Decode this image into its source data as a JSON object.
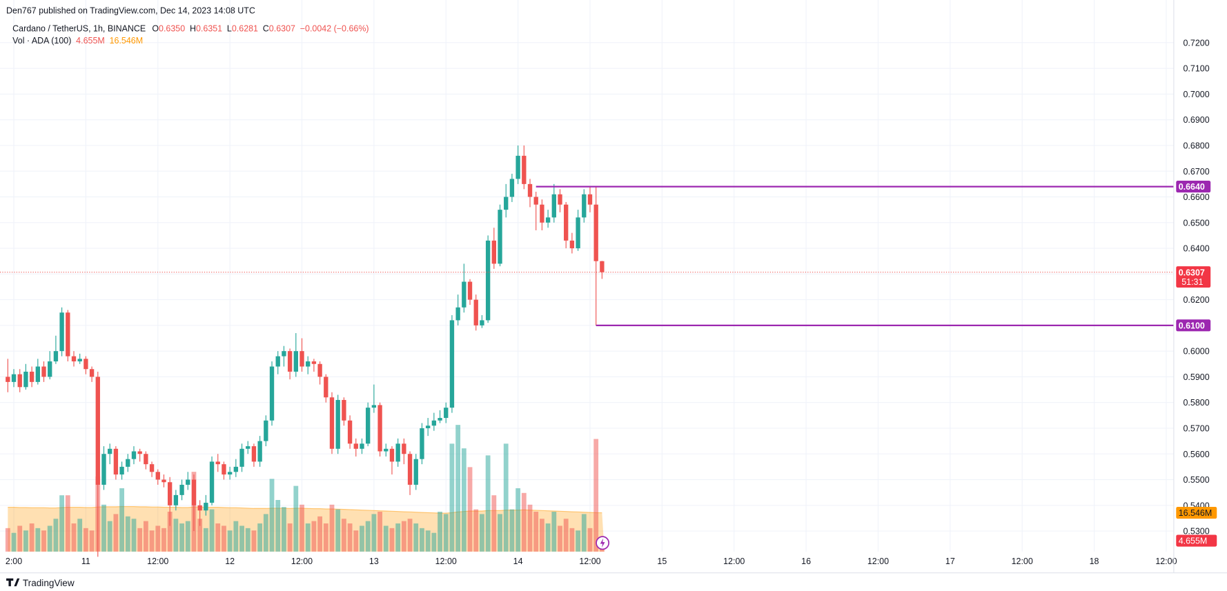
{
  "chart_data": {
    "type": "candlestick",
    "title": "Den767 published on TradingView.com, Dec 14, 2023 14:08 UTC",
    "symbol": "Cardano / TetherUS, 1h, BINANCE",
    "ohlc_legend": [
      {
        "key": "O",
        "value": "0.6350"
      },
      {
        "key": "H",
        "value": "0.6351"
      },
      {
        "key": "L",
        "value": "0.6281"
      },
      {
        "key": "C",
        "value": "0.6307"
      }
    ],
    "change": "−0.0042 (−0.66%)",
    "volume_legend": "Vol · ADA (100)",
    "up_color": "#26a69a",
    "down_color": "#ef5350",
    "ma_color": "#ff9800",
    "level_color": "#9c27b0",
    "grid": true,
    "x": [
      0,
      1,
      2,
      3,
      4,
      5,
      6,
      7,
      8,
      9,
      10,
      11,
      12,
      13,
      14,
      15,
      16,
      17,
      18,
      19,
      20,
      21,
      22,
      23,
      24,
      25,
      26,
      27,
      28,
      29,
      30,
      31,
      32,
      33,
      34,
      35,
      36,
      37,
      38,
      39,
      40,
      41,
      42,
      43,
      44,
      45,
      46,
      47,
      48,
      49,
      50,
      51,
      52,
      53,
      54,
      55,
      56,
      57,
      58,
      59,
      60,
      61,
      62,
      63,
      64,
      65,
      66,
      67,
      68,
      69,
      70,
      71,
      72,
      73,
      74,
      75,
      76,
      77,
      78,
      79,
      80,
      81,
      82,
      83,
      84,
      85,
      86,
      87,
      88,
      89,
      90,
      91,
      92,
      93,
      94,
      95,
      96,
      97,
      98,
      99
    ],
    "open": [
      0.59,
      0.588,
      0.591,
      0.586,
      0.592,
      0.588,
      0.594,
      0.59,
      0.596,
      0.6,
      0.615,
      0.598,
      0.596,
      0.597,
      0.593,
      0.59,
      0.548,
      0.56,
      0.562,
      0.552,
      0.555,
      0.558,
      0.561,
      0.56,
      0.556,
      0.553,
      0.55,
      0.549,
      0.54,
      0.544,
      0.548,
      0.55,
      0.54,
      0.538,
      0.541,
      0.557,
      0.556,
      0.552,
      0.553,
      0.555,
      0.562,
      0.563,
      0.557,
      0.565,
      0.573,
      0.594,
      0.598,
      0.6,
      0.592,
      0.6,
      0.594,
      0.596,
      0.595,
      0.59,
      0.582,
      0.562,
      0.581,
      0.573,
      0.564,
      0.562,
      0.564,
      0.578,
      0.579,
      0.561,
      0.562,
      0.557,
      0.564,
      0.56,
      0.548,
      0.558,
      0.57,
      0.571,
      0.573,
      0.574,
      0.578,
      0.612,
      0.617,
      0.627,
      0.62,
      0.61,
      0.612,
      0.643,
      0.634,
      0.655,
      0.66,
      0.667,
      0.676,
      0.665,
      0.66,
      0.657,
      0.65,
      0.652,
      0.661,
      0.657,
      0.643,
      0.64,
      0.652,
      0.661,
      0.657,
      0.635
    ],
    "high": [
      0.597,
      0.593,
      0.593,
      0.595,
      0.594,
      0.597,
      0.596,
      0.6,
      0.606,
      0.617,
      0.616,
      0.6,
      0.599,
      0.598,
      0.594,
      0.592,
      0.563,
      0.564,
      0.563,
      0.557,
      0.56,
      0.563,
      0.562,
      0.561,
      0.557,
      0.554,
      0.552,
      0.551,
      0.546,
      0.55,
      0.553,
      0.552,
      0.542,
      0.544,
      0.559,
      0.56,
      0.557,
      0.555,
      0.558,
      0.564,
      0.565,
      0.564,
      0.567,
      0.575,
      0.596,
      0.6,
      0.602,
      0.601,
      0.607,
      0.605,
      0.598,
      0.597,
      0.596,
      0.591,
      0.584,
      0.583,
      0.582,
      0.575,
      0.566,
      0.566,
      0.58,
      0.587,
      0.58,
      0.564,
      0.563,
      0.566,
      0.566,
      0.561,
      0.56,
      0.572,
      0.574,
      0.576,
      0.577,
      0.58,
      0.614,
      0.622,
      0.634,
      0.628,
      0.622,
      0.614,
      0.645,
      0.648,
      0.657,
      0.665,
      0.669,
      0.68,
      0.68,
      0.667,
      0.662,
      0.659,
      0.655,
      0.665,
      0.663,
      0.658,
      0.646,
      0.655,
      0.663,
      0.664,
      0.664,
      0.6351
    ],
    "low": [
      0.584,
      0.586,
      0.584,
      0.585,
      0.586,
      0.587,
      0.588,
      0.589,
      0.595,
      0.598,
      0.596,
      0.594,
      0.595,
      0.591,
      0.588,
      0.52,
      0.546,
      0.556,
      0.55,
      0.55,
      0.553,
      0.556,
      0.557,
      0.554,
      0.551,
      0.548,
      0.547,
      0.532,
      0.538,
      0.542,
      0.546,
      0.53,
      0.532,
      0.536,
      0.54,
      0.553,
      0.55,
      0.55,
      0.551,
      0.553,
      0.56,
      0.555,
      0.555,
      0.563,
      0.571,
      0.591,
      0.594,
      0.589,
      0.59,
      0.592,
      0.591,
      0.592,
      0.587,
      0.58,
      0.56,
      0.56,
      0.571,
      0.562,
      0.559,
      0.56,
      0.563,
      0.576,
      0.559,
      0.559,
      0.552,
      0.555,
      0.556,
      0.544,
      0.546,
      0.556,
      0.567,
      0.569,
      0.572,
      0.572,
      0.576,
      0.61,
      0.615,
      0.618,
      0.608,
      0.609,
      0.611,
      0.632,
      0.633,
      0.652,
      0.658,
      0.665,
      0.663,
      0.656,
      0.647,
      0.647,
      0.648,
      0.65,
      0.654,
      0.64,
      0.638,
      0.639,
      0.65,
      0.654,
      0.61,
      0.6281
    ],
    "close": [
      0.588,
      0.591,
      0.586,
      0.592,
      0.588,
      0.594,
      0.59,
      0.596,
      0.6,
      0.615,
      0.598,
      0.596,
      0.597,
      0.593,
      0.59,
      0.548,
      0.56,
      0.562,
      0.552,
      0.555,
      0.558,
      0.561,
      0.56,
      0.556,
      0.553,
      0.55,
      0.549,
      0.54,
      0.544,
      0.548,
      0.55,
      0.54,
      0.538,
      0.541,
      0.557,
      0.556,
      0.552,
      0.553,
      0.555,
      0.562,
      0.563,
      0.557,
      0.565,
      0.573,
      0.594,
      0.598,
      0.6,
      0.592,
      0.6,
      0.594,
      0.596,
      0.595,
      0.59,
      0.582,
      0.562,
      0.581,
      0.573,
      0.564,
      0.562,
      0.564,
      0.578,
      0.579,
      0.561,
      0.562,
      0.557,
      0.564,
      0.56,
      0.548,
      0.558,
      0.57,
      0.571,
      0.573,
      0.574,
      0.578,
      0.612,
      0.617,
      0.627,
      0.62,
      0.61,
      0.612,
      0.643,
      0.634,
      0.655,
      0.66,
      0.667,
      0.676,
      0.665,
      0.66,
      0.657,
      0.65,
      0.652,
      0.661,
      0.657,
      0.643,
      0.64,
      0.652,
      0.661,
      0.657,
      0.635,
      0.6307
    ],
    "volume": [
      10,
      8,
      11,
      9,
      12,
      10,
      9,
      11,
      14,
      24,
      24,
      12,
      14,
      10,
      9,
      32,
      20,
      13,
      16,
      27,
      15,
      14,
      10,
      13,
      9,
      11,
      10,
      17,
      14,
      12,
      13,
      34,
      14,
      10,
      18,
      12,
      11,
      9,
      13,
      11,
      10,
      9,
      12,
      16,
      31,
      22,
      19,
      12,
      28,
      20,
      12,
      13,
      15,
      12,
      20,
      18,
      14,
      12,
      9,
      11,
      13,
      16,
      17,
      11,
      10,
      12,
      13,
      14,
      12,
      10,
      9,
      8,
      17,
      16,
      46,
      54,
      44,
      36,
      18,
      16,
      41,
      24,
      16,
      46,
      18,
      27,
      25,
      20,
      17,
      14,
      12,
      17,
      11,
      14,
      10,
      9,
      16,
      10,
      48,
      4.655
    ],
    "volume_ma": [
      18.9,
      18.9,
      18.8,
      18.8,
      18.7,
      18.7,
      18.7,
      18.6,
      18.6,
      18.8,
      18.9,
      18.9,
      18.9,
      18.8,
      18.8,
      19.0,
      19.1,
      19.1,
      19.1,
      19.2,
      19.2,
      19.2,
      19.1,
      19.1,
      19.0,
      19.0,
      18.9,
      18.9,
      18.9,
      18.8,
      18.8,
      19.0,
      19.0,
      18.9,
      18.9,
      18.9,
      18.8,
      18.7,
      18.7,
      18.6,
      18.5,
      18.4,
      18.4,
      18.4,
      18.5,
      18.5,
      18.5,
      18.4,
      18.5,
      18.5,
      18.4,
      18.3,
      18.3,
      18.2,
      18.2,
      18.1,
      18.0,
      17.9,
      17.8,
      17.7,
      17.6,
      17.5,
      17.4,
      17.3,
      17.2,
      17.1,
      17.0,
      16.9,
      16.8,
      16.7,
      16.6,
      16.5,
      16.4,
      16.4,
      16.6,
      16.9,
      17.1,
      17.3,
      17.3,
      17.3,
      17.5,
      17.5,
      17.5,
      17.7,
      17.7,
      17.7,
      17.8,
      17.7,
      17.6,
      17.5,
      17.4,
      17.3,
      17.2,
      17.1,
      17.0,
      16.9,
      16.8,
      16.7,
      16.6,
      16.546
    ],
    "xlim": [
      -0.26,
      194.26
    ],
    "xticks": [
      {
        "value": 1,
        "label": "2:00"
      },
      {
        "value": 13,
        "label": "11"
      },
      {
        "value": 25,
        "label": "12:00"
      },
      {
        "value": 37,
        "label": "12"
      },
      {
        "value": 49,
        "label": "12:00"
      },
      {
        "value": 61,
        "label": "13"
      },
      {
        "value": 73,
        "label": "12:00"
      },
      {
        "value": 85,
        "label": "14"
      },
      {
        "value": 97,
        "label": "12:00"
      },
      {
        "value": 109,
        "label": "15"
      },
      {
        "value": 121,
        "label": "12:00"
      },
      {
        "value": 133,
        "label": "16"
      },
      {
        "value": 145,
        "label": "12:00"
      },
      {
        "value": 157,
        "label": "17"
      },
      {
        "value": 169,
        "label": "12:00"
      },
      {
        "value": 181,
        "label": "18"
      },
      {
        "value": 193,
        "label": "12:00"
      }
    ],
    "ylim": [
      0.522,
      0.7274
    ],
    "yticks": [
      {
        "value": 0.53,
        "label": "0.5300"
      },
      {
        "value": 0.54,
        "label": "0.5400"
      },
      {
        "value": 0.55,
        "label": "0.5500"
      },
      {
        "value": 0.56,
        "label": "0.5600"
      },
      {
        "value": 0.57,
        "label": "0.5700"
      },
      {
        "value": 0.58,
        "label": "0.5800"
      },
      {
        "value": 0.59,
        "label": "0.5900"
      },
      {
        "value": 0.6,
        "label": "0.6000"
      },
      {
        "value": 0.61,
        "label": "0.6100"
      },
      {
        "value": 0.62,
        "label": "0.6200"
      },
      {
        "value": 0.63,
        "label": "0.6300"
      },
      {
        "value": 0.64,
        "label": "0.6400"
      },
      {
        "value": 0.65,
        "label": "0.6500"
      },
      {
        "value": 0.66,
        "label": "0.6600"
      },
      {
        "value": 0.67,
        "label": "0.6700"
      },
      {
        "value": 0.68,
        "label": "0.6800"
      },
      {
        "value": 0.69,
        "label": "0.6900"
      },
      {
        "value": 0.7,
        "label": "0.7000"
      },
      {
        "value": 0.71,
        "label": "0.7100"
      },
      {
        "value": 0.72,
        "label": "0.7200"
      }
    ],
    "volume_lim": [
      0,
      225
    ],
    "levels": [
      {
        "value": 0.664,
        "label": "0.6640",
        "start": 88
      },
      {
        "value": 0.61,
        "label": "0.6100",
        "start": 98
      }
    ],
    "last_price": {
      "value": 0.6307,
      "label": "0.6307",
      "countdown": "51:31"
    },
    "volume_labels": {
      "ma": {
        "value": 16.546,
        "label": "16.546M"
      },
      "last": {
        "value": 4.655,
        "label": "4.655M"
      }
    }
  },
  "footer_brand": "TradingView"
}
